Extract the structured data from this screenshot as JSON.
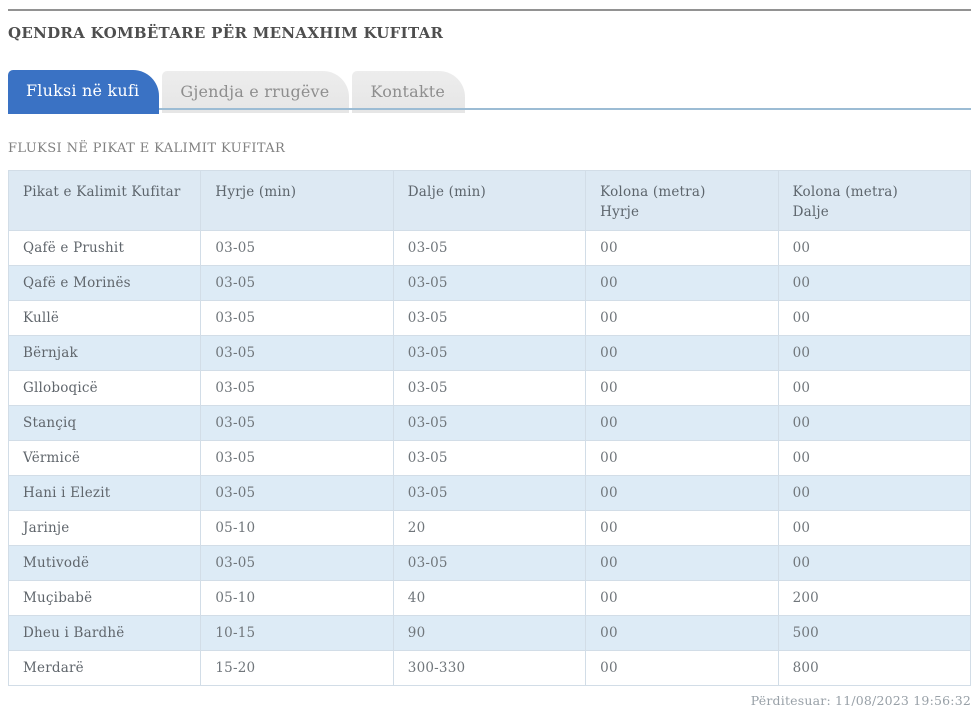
{
  "page": {
    "title": "QENDRA KOMBËTARE PËR MENAXHIM KUFITAR",
    "updated": "Përditesuar: 11/08/2023 19:56:32"
  },
  "tabs": [
    {
      "label": "Fluksi në kufi",
      "active": true
    },
    {
      "label": "Gjendja e rrugëve",
      "active": false
    },
    {
      "label": "Kontakte",
      "active": false
    }
  ],
  "section": {
    "title": "FLUKSI NË PIKAT E KALIMIT KUFITAR"
  },
  "table": {
    "columns": [
      {
        "line1": "Pikat e Kalimit Kufitar",
        "line2": ""
      },
      {
        "line1": "Hyrje (min)",
        "line2": ""
      },
      {
        "line1": "Dalje (min)",
        "line2": ""
      },
      {
        "line1": "Kolona (metra)",
        "line2": "Hyrje"
      },
      {
        "line1": "Kolona (metra)",
        "line2": "Dalje"
      }
    ],
    "rows": [
      {
        "name": "Qafë e Prushit",
        "hyrje": "03-05",
        "dalje": "03-05",
        "kolona_hyrje": "00",
        "kolona_dalje": "00"
      },
      {
        "name": "Qafë e Morinës",
        "hyrje": "03-05",
        "dalje": "03-05",
        "kolona_hyrje": "00",
        "kolona_dalje": "00"
      },
      {
        "name": "Kullë",
        "hyrje": "03-05",
        "dalje": "03-05",
        "kolona_hyrje": "00",
        "kolona_dalje": "00"
      },
      {
        "name": "Bërnjak",
        "hyrje": "03-05",
        "dalje": "03-05",
        "kolona_hyrje": "00",
        "kolona_dalje": "00"
      },
      {
        "name": "Glloboqicë",
        "hyrje": "03-05",
        "dalje": "03-05",
        "kolona_hyrje": "00",
        "kolona_dalje": "00"
      },
      {
        "name": "Stançiq",
        "hyrje": "03-05",
        "dalje": "03-05",
        "kolona_hyrje": "00",
        "kolona_dalje": "00"
      },
      {
        "name": "Vërmicë",
        "hyrje": "03-05",
        "dalje": "03-05",
        "kolona_hyrje": "00",
        "kolona_dalje": "00"
      },
      {
        "name": "Hani i Elezit",
        "hyrje": "03-05",
        "dalje": "03-05",
        "kolona_hyrje": "00",
        "kolona_dalje": "00"
      },
      {
        "name": "Jarinje",
        "hyrje": "05-10",
        "dalje": "20",
        "kolona_hyrje": "00",
        "kolona_dalje": "00"
      },
      {
        "name": "Mutivodë",
        "hyrje": "03-05",
        "dalje": "03-05",
        "kolona_hyrje": "00",
        "kolona_dalje": "00"
      },
      {
        "name": "Muçibabë",
        "hyrje": "05-10",
        "dalje": "40",
        "kolona_hyrje": "00",
        "kolona_dalje": "200"
      },
      {
        "name": "Dheu i Bardhë",
        "hyrje": "10-15",
        "dalje": "90",
        "kolona_hyrje": "00",
        "kolona_dalje": "500"
      },
      {
        "name": "Merdarë",
        "hyrje": "15-20",
        "dalje": "300-330",
        "kolona_hyrje": "00",
        "kolona_dalje": "800"
      }
    ]
  },
  "colors": {
    "active_tab": "#3a72c4",
    "tab_underline": "#9cbcd4",
    "header_bg": "#dde9f3",
    "alt_row_bg": "#ddebf6",
    "border": "#d2dde7",
    "top_rule": "#929292"
  }
}
